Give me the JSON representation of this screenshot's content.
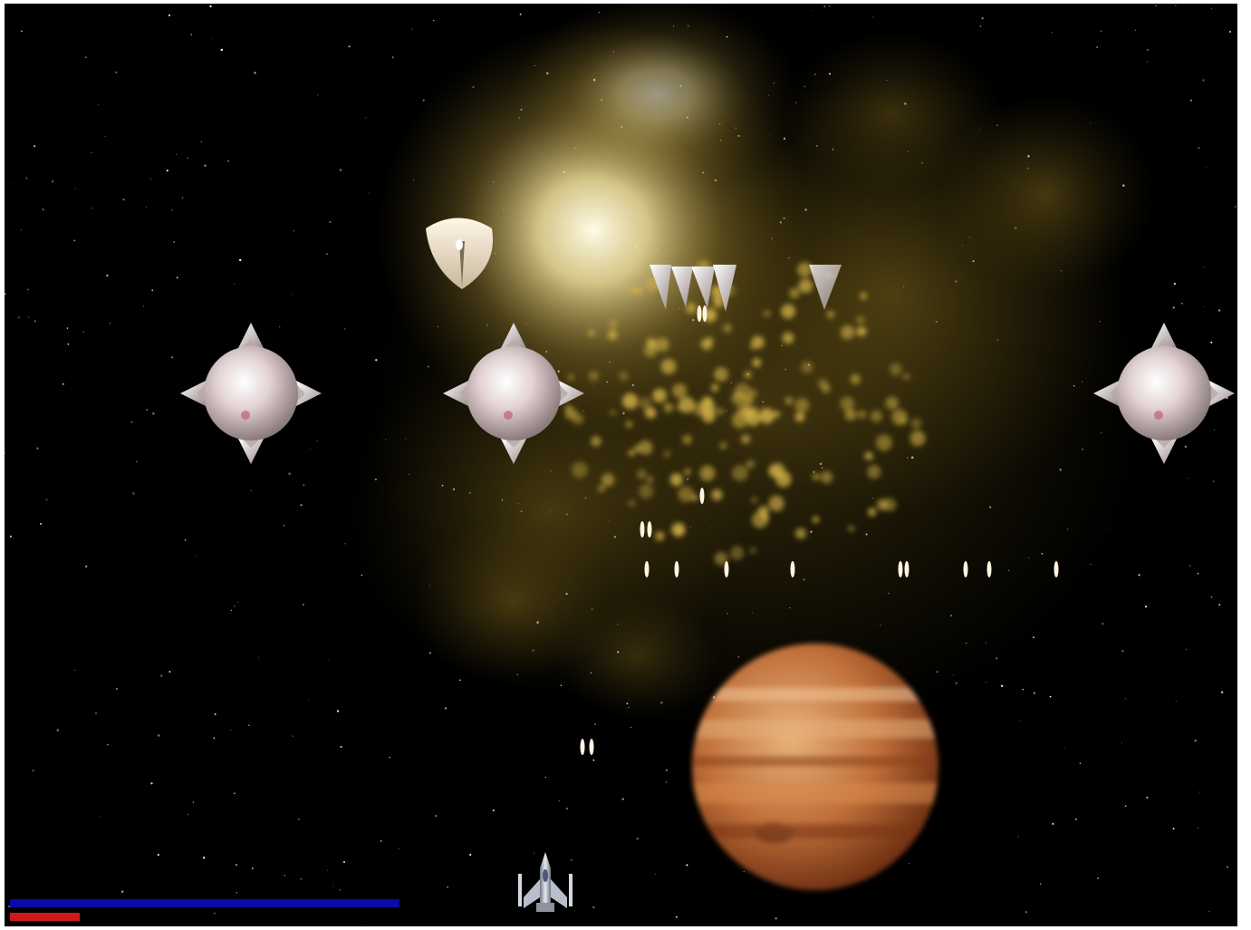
{
  "game": {
    "colors": {
      "background": "#000000",
      "nebula": "#c9a227",
      "planet": "#c87a3c",
      "enemy": "#d8c7c7",
      "projectile": "#fff4e0",
      "shield_bar": "#0a0aa8",
      "health_bar": "#cc1a1a"
    },
    "hud": {
      "shield_level": 1.0,
      "health_level": 0.18
    },
    "sprites": {
      "player": "player-ship-icon",
      "enemy_orb": "spiked-orb-enemy-icon",
      "enemy_pod": "pod-enemy-icon",
      "enemy_spikes": "spike-cluster-enemy-icon",
      "planet": "gas-giant-planet-icon",
      "bullet": "bullet-icon"
    }
  }
}
